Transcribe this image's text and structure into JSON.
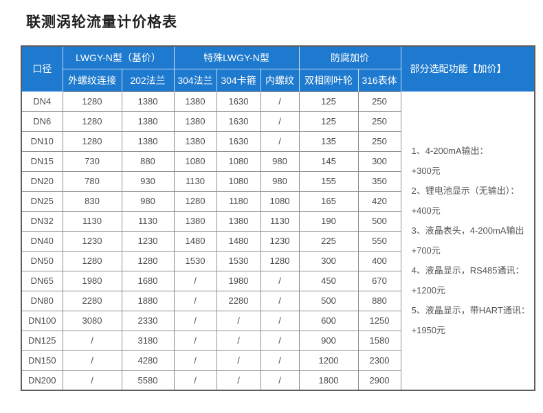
{
  "page": {
    "title": "联测涡轮流量计价格表"
  },
  "colors": {
    "header_bg": "#1e7ace",
    "header_text": "#ffffff",
    "grid_border": "#8e8e8e",
    "outer_border": "#5c5c5c",
    "body_text": "#4a4a4a"
  },
  "table": {
    "header": {
      "col_diameter": "口径",
      "group_base": "LWGY-N型（基价）",
      "group_special": "特殊LWGY-N型",
      "group_anticorrosion": "防腐加价",
      "col_options": "部分选配功能【加价】",
      "sub_columns": [
        "外螺纹连接",
        "202法兰",
        "304法兰",
        "304卡箍",
        "内螺纹",
        "双相刚叶轮",
        "316表体"
      ]
    },
    "rows": [
      {
        "dn": "DN4",
        "values": [
          "1280",
          "1380",
          "1380",
          "1630",
          "/",
          "125",
          "250"
        ]
      },
      {
        "dn": "DN6",
        "values": [
          "1280",
          "1380",
          "1380",
          "1630",
          "/",
          "125",
          "250"
        ]
      },
      {
        "dn": "DN10",
        "values": [
          "1280",
          "1380",
          "1380",
          "1630",
          "/",
          "135",
          "250"
        ]
      },
      {
        "dn": "DN15",
        "values": [
          "730",
          "880",
          "1080",
          "1080",
          "980",
          "145",
          "300"
        ]
      },
      {
        "dn": "DN20",
        "values": [
          "780",
          "930",
          "1130",
          "1080",
          "980",
          "155",
          "350"
        ]
      },
      {
        "dn": "DN25",
        "values": [
          "830",
          "980",
          "1280",
          "1180",
          "1080",
          "165",
          "420"
        ]
      },
      {
        "dn": "DN32",
        "values": [
          "1130",
          "1130",
          "1380",
          "1380",
          "1130",
          "190",
          "500"
        ]
      },
      {
        "dn": "DN40",
        "values": [
          "1230",
          "1230",
          "1480",
          "1480",
          "1230",
          "225",
          "550"
        ]
      },
      {
        "dn": "DN50",
        "values": [
          "1280",
          "1280",
          "1530",
          "1530",
          "1280",
          "300",
          "400"
        ]
      },
      {
        "dn": "DN65",
        "values": [
          "1980",
          "1680",
          "/",
          "1980",
          "/",
          "450",
          "670"
        ]
      },
      {
        "dn": "DN80",
        "values": [
          "2280",
          "1880",
          "/",
          "2280",
          "/",
          "500",
          "880"
        ]
      },
      {
        "dn": "DN100",
        "values": [
          "3080",
          "2330",
          "/",
          "/",
          "/",
          "600",
          "1250"
        ]
      },
      {
        "dn": "DN125",
        "values": [
          "/",
          "3180",
          "/",
          "/",
          "/",
          "900",
          "1580"
        ]
      },
      {
        "dn": "DN150",
        "values": [
          "/",
          "4280",
          "/",
          "/",
          "/",
          "1200",
          "2300"
        ]
      },
      {
        "dn": "DN200",
        "values": [
          "/",
          "5580",
          "/",
          "/",
          "/",
          "1800",
          "2900"
        ]
      }
    ],
    "options_notes": [
      "1、4-200mA输出：",
      "+300元",
      "2、锂电池显示（无输出）：",
      "+400元",
      "3、液晶表头，4-200mA输出",
      "+700元",
      "4、液晶显示，RS485通讯：",
      "+1200元",
      "5、液晶显示，带HART通讯：",
      "+1950元"
    ]
  }
}
